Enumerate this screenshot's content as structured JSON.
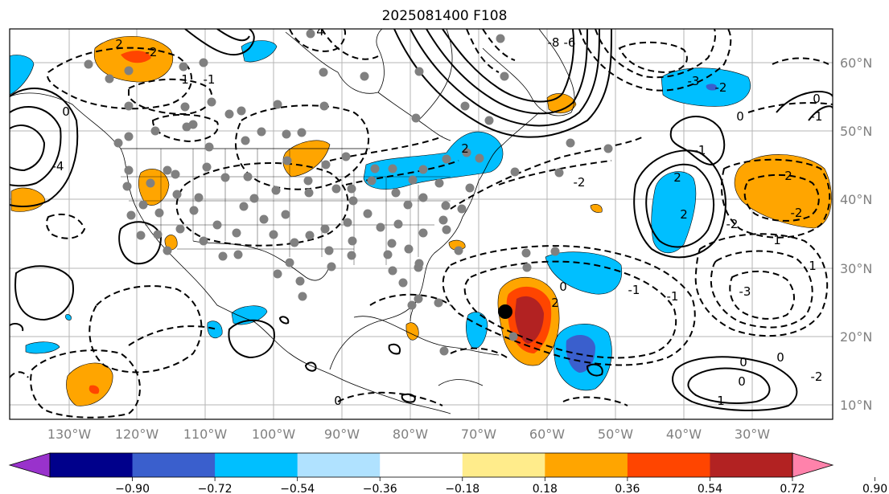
{
  "title": "2025081400 F108",
  "map": {
    "longitude_labels": [
      "130°W",
      "120°W",
      "110°W",
      "100°W",
      "90°W",
      "80°W",
      "70°W",
      "60°W",
      "50°W",
      "40°W",
      "30°W"
    ],
    "latitude_labels": [
      "60°N",
      "50°N",
      "40°N",
      "30°N",
      "20°N",
      "10°N"
    ],
    "contour_labels": [
      "4",
      "2",
      "0",
      "-2",
      "-4",
      "-8",
      "-6",
      "-3",
      "-1",
      "1",
      "2",
      "-2",
      "0",
      "2",
      "-1",
      "-2",
      "1",
      "0",
      "-1",
      "2",
      "2",
      "0",
      "-3",
      "-2",
      "-2",
      "0",
      "-1",
      "0",
      "2",
      "-2",
      "0",
      "1",
      "1",
      "-1",
      "0"
    ]
  },
  "colorbar": {
    "tick_labels": [
      "−0.90",
      "−0.72",
      "−0.54",
      "−0.36",
      "−0.18",
      "0.18",
      "0.36",
      "0.54",
      "0.72",
      "0.90"
    ],
    "colors": [
      "#9932cc",
      "#00008b",
      "#3a5fcd",
      "#00bfff",
      "#b0e2ff",
      "#ffffff",
      "#ffec8b",
      "#ffa500",
      "#ff4500",
      "#b22222",
      "#ff82ab"
    ]
  }
}
